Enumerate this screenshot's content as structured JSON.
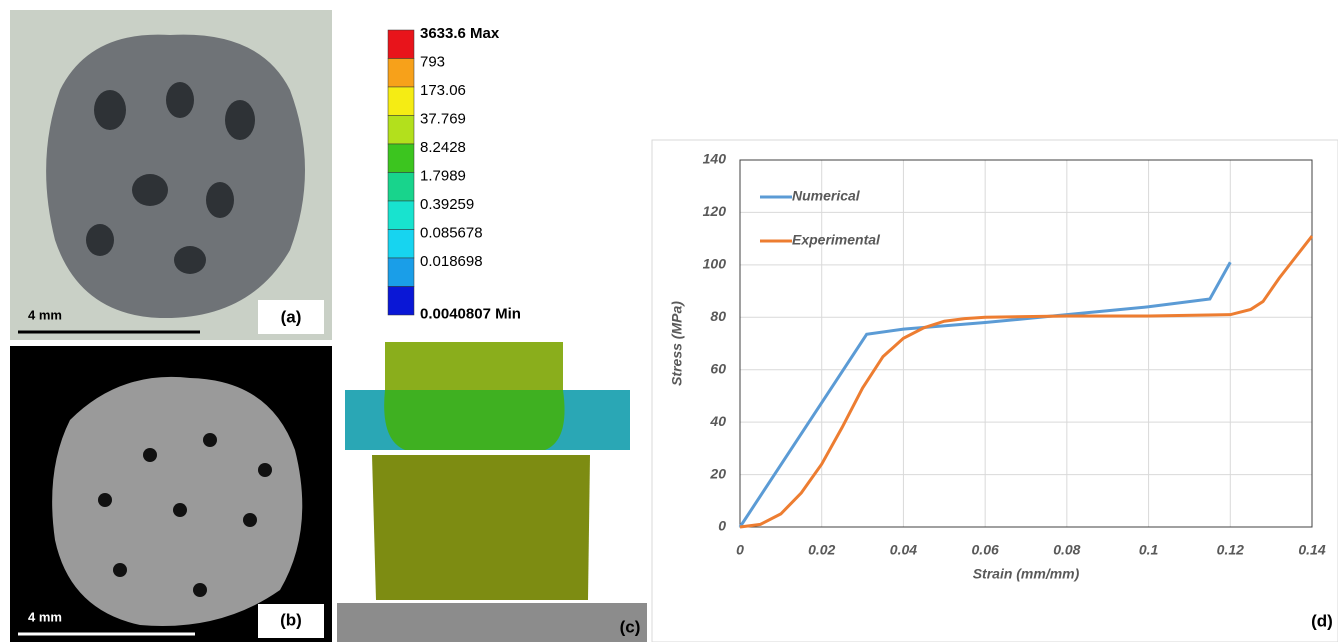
{
  "panels": {
    "a": {
      "scale_label": "4 mm",
      "label": "(a)"
    },
    "b": {
      "scale_label": "4 mm",
      "label": "(b)"
    },
    "c": {
      "label": "(c)",
      "contour_legend": [
        "3633.6 Max",
        "793",
        "173.06",
        "37.769",
        "8.2428",
        "1.7989",
        "0.39259",
        "0.085678",
        "0.018698",
        "0.0040807 Min"
      ]
    },
    "d": {
      "label": "(d)"
    }
  },
  "chart_data": {
    "type": "line",
    "x_label": "Strain (mm/mm)",
    "y_label": "Stress (MPa)",
    "xlim": [
      0,
      0.14
    ],
    "xticks": [
      0,
      0.02,
      0.04,
      0.06,
      0.08,
      0.1,
      0.12,
      0.14
    ],
    "ylim": [
      0,
      140
    ],
    "yticks": [
      0,
      20,
      40,
      60,
      80,
      100,
      120,
      140
    ],
    "grid": true,
    "series": [
      {
        "name": "Numerical",
        "color": "#5b9bd5",
        "x": [
          0,
          0.031,
          0.04,
          0.06,
          0.08,
          0.1,
          0.115,
          0.12
        ],
        "values": [
          0,
          73.5,
          75.5,
          78,
          81,
          84,
          87,
          101
        ]
      },
      {
        "name": "Experimental",
        "color": "#ed7d31",
        "x": [
          0,
          0.005,
          0.01,
          0.015,
          0.02,
          0.025,
          0.03,
          0.035,
          0.04,
          0.045,
          0.05,
          0.055,
          0.06,
          0.08,
          0.1,
          0.12,
          0.125,
          0.128,
          0.132,
          0.136,
          0.14
        ],
        "values": [
          0,
          1,
          5,
          13,
          24,
          38,
          53,
          65,
          72,
          76,
          78.5,
          79.5,
          80,
          80.5,
          80.5,
          81,
          83,
          86,
          95,
          103,
          111
        ]
      }
    ]
  }
}
